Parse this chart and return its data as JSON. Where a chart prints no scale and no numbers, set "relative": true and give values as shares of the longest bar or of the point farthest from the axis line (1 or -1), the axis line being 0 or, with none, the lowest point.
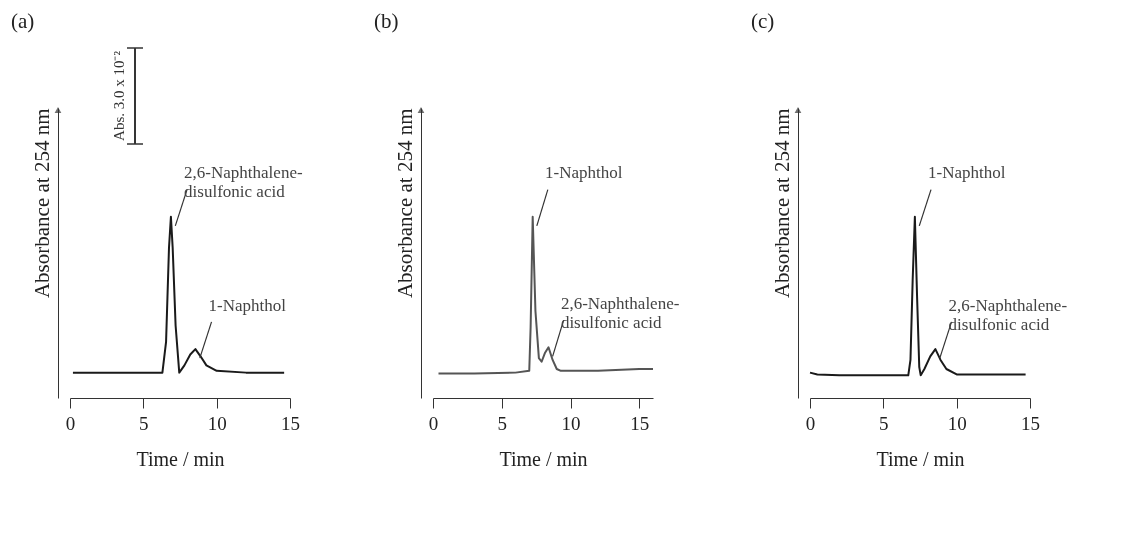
{
  "chart_data": [
    {
      "type": "line",
      "title": "(a)",
      "xlabel": "Time / min",
      "ylabel": "Absorbance at 254 nm",
      "relative": true,
      "xlim": [
        0,
        15
      ],
      "xticks": [
        0,
        5,
        10,
        15
      ],
      "tick_labels": "x",
      "grid": false,
      "color": "#1a1a1a",
      "x": [
        0.2,
        3,
        6.3,
        6.55,
        6.75,
        6.88,
        7.0,
        7.2,
        7.45,
        7.8,
        8.2,
        8.55,
        8.9,
        9.3,
        10,
        12,
        14.6
      ],
      "values": [
        0.14,
        0.14,
        0.14,
        0.31,
        0.83,
        1,
        0.83,
        0.4,
        0.14,
        0.18,
        0.24,
        0.27,
        0.23,
        0.18,
        0.15,
        0.14,
        0.14
      ],
      "annotations": [
        "Abs. 3.0 x 10⁻²",
        {
          "text": "2,6-Naphthalene-\ndisulfonic acid",
          "x": 6.88,
          "y": 1
        },
        {
          "text": "1-Naphthol",
          "x": 8.55,
          "y": 0.27
        }
      ]
    },
    {
      "type": "line",
      "title": "(b)",
      "xlabel": "Time / min",
      "ylabel": "Absorbance at 254 nm",
      "relative": true,
      "xlim": [
        0,
        16
      ],
      "xticks": [
        0,
        5,
        10,
        15
      ],
      "tick_labels": "x",
      "grid": false,
      "color": "#555555",
      "x": [
        0.4,
        3,
        6,
        7.0,
        7.1,
        7.25,
        7.45,
        7.7,
        7.9,
        8.15,
        8.4,
        8.7,
        9.0,
        9.3,
        12,
        15,
        16
      ],
      "values": [
        0.135,
        0.135,
        0.14,
        0.15,
        0.39,
        1,
        0.48,
        0.22,
        0.2,
        0.25,
        0.28,
        0.21,
        0.16,
        0.15,
        0.15,
        0.16,
        0.16
      ],
      "annotations": [
        {
          "text": "1-Naphthol",
          "x": 7.25,
          "y": 1
        },
        {
          "text": "2,6-Naphthalene-\ndisulfonic acid",
          "x": 8.4,
          "y": 0.28
        }
      ]
    },
    {
      "type": "line",
      "title": "(c)",
      "xlabel": "Time / min",
      "ylabel": "Absorbance at 254 nm",
      "relative": true,
      "xlim": [
        0,
        15
      ],
      "xticks": [
        0,
        5,
        10,
        15
      ],
      "tick_labels": "x",
      "grid": false,
      "color": "#1a1a1a",
      "x": [
        0,
        0.5,
        2,
        6.7,
        6.85,
        7.0,
        7.15,
        7.3,
        7.45,
        7.55,
        7.8,
        8.2,
        8.55,
        8.9,
        9.3,
        10,
        14.7
      ],
      "values": [
        0.14,
        0.13,
        0.125,
        0.125,
        0.21,
        0.65,
        1,
        0.56,
        0.17,
        0.125,
        0.16,
        0.23,
        0.27,
        0.21,
        0.16,
        0.13,
        0.13
      ],
      "annotations": [
        {
          "text": "1-Naphthol",
          "x": 7.15,
          "y": 1
        },
        {
          "text": "2,6-Naphthalene-\ndisulfonic acid",
          "x": 8.55,
          "y": 0.27
        }
      ]
    }
  ]
}
